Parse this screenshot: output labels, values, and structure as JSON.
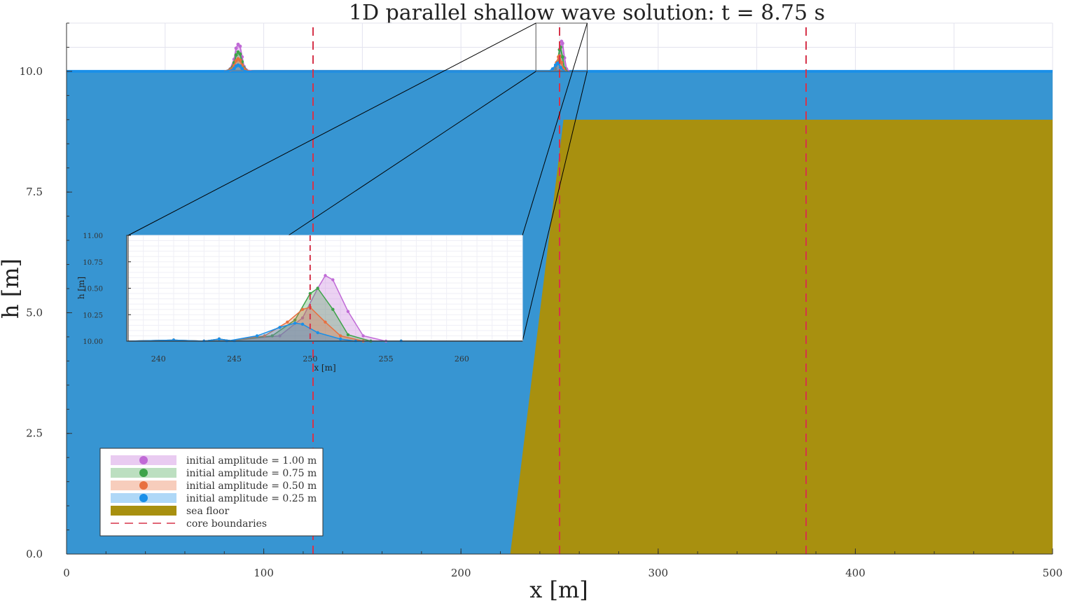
{
  "chart_data": {
    "type": "area",
    "title": "1D parallel shallow wave solution: t = 8.75 s",
    "xlabel": "x [m]",
    "ylabel": "h [m]",
    "xlim": [
      0,
      500
    ],
    "ylim": [
      0,
      11
    ],
    "x_ticks": [
      0,
      100,
      200,
      300,
      400,
      500
    ],
    "x_tick_labels": [
      "0",
      "100",
      "200",
      "300",
      "400",
      "500"
    ],
    "y_ticks": [
      0,
      2.5,
      5,
      7.5,
      10
    ],
    "y_tick_labels": [
      "0.0",
      "2.5",
      "5.0",
      "7.5",
      "10.0"
    ],
    "grid": true,
    "legend_position": "bottom-left",
    "core_boundaries_x": [
      125,
      250,
      375
    ],
    "sea_floor": {
      "name": "sea floor",
      "color": "#a8900f",
      "x": [
        0,
        225,
        252,
        500
      ],
      "y": [
        0,
        0,
        9.0,
        9.0
      ]
    },
    "series": [
      {
        "name": "initial amplitude = 1.00 m",
        "color": "#c06ad6",
        "x": [
          80,
          83,
          85,
          86,
          87,
          88,
          89,
          90,
          92,
          95,
          244.5,
          248,
          249.5,
          250.5,
          251,
          251.5,
          252.5,
          253.5,
          255
        ],
        "y": [
          10.0,
          10.05,
          10.25,
          10.48,
          10.56,
          10.52,
          10.3,
          10.1,
          10.02,
          10.0,
          10.0,
          10.05,
          10.22,
          10.5,
          10.62,
          10.58,
          10.28,
          10.05,
          10.0
        ]
      },
      {
        "name": "initial amplitude = 0.75 m",
        "color": "#3ea34a",
        "x": [
          80,
          83,
          85,
          86,
          87,
          88,
          89,
          90,
          92,
          95,
          244.5,
          247.5,
          249,
          250,
          250.5,
          251.5,
          252.5,
          254
        ],
        "y": [
          10.0,
          10.04,
          10.18,
          10.34,
          10.4,
          10.36,
          10.2,
          10.07,
          10.01,
          10.0,
          10.0,
          10.05,
          10.2,
          10.45,
          10.5,
          10.3,
          10.06,
          10.0
        ]
      },
      {
        "name": "initial amplitude = 0.50 m",
        "color": "#e8703f",
        "x": [
          80,
          83,
          85,
          86,
          87,
          88,
          89,
          90,
          92,
          95,
          244.5,
          247,
          248.5,
          249.5,
          250,
          251,
          252,
          253.5
        ],
        "y": [
          10.0,
          10.03,
          10.12,
          10.22,
          10.26,
          10.23,
          10.13,
          10.05,
          10.01,
          10.0,
          10.0,
          10.05,
          10.18,
          10.3,
          10.32,
          10.18,
          10.05,
          10.0
        ]
      },
      {
        "name": "initial amplitude = 0.25 m",
        "color": "#1a8fe8",
        "x": [
          80,
          83,
          85,
          86,
          87,
          88,
          89,
          90,
          92,
          95,
          244.5,
          246.5,
          248,
          249,
          249.5,
          250.5,
          252,
          253
        ],
        "y": [
          10.0,
          10.02,
          10.06,
          10.11,
          10.13,
          10.11,
          10.06,
          10.02,
          10.0,
          10.0,
          10.0,
          10.05,
          10.13,
          10.17,
          10.16,
          10.08,
          10.02,
          10.0
        ]
      }
    ],
    "inset": {
      "xlabel": "x [m]",
      "ylabel": "h [m]",
      "xlim": [
        238,
        264
      ],
      "ylim": [
        10.0,
        11.0
      ],
      "x_ticks": [
        240,
        245,
        250,
        255,
        260
      ],
      "x_tick_labels": [
        "240",
        "245",
        "250",
        "255",
        "260"
      ],
      "y_ticks": [
        10.0,
        10.25,
        10.5,
        10.75,
        11.0
      ],
      "y_tick_labels": [
        "10.00",
        "10.25",
        "10.50",
        "10.75",
        "11.00"
      ],
      "core_boundary_x": 250
    },
    "legend": [
      {
        "label": "initial amplitude = 1.00 m",
        "kind": "series",
        "color": "#c06ad6"
      },
      {
        "label": "initial amplitude = 0.75 m",
        "kind": "series",
        "color": "#3ea34a"
      },
      {
        "label": "initial amplitude = 0.50 m",
        "kind": "series",
        "color": "#e8703f"
      },
      {
        "label": "initial amplitude = 0.25 m",
        "kind": "series",
        "color": "#1a8fe8"
      },
      {
        "label": "sea floor",
        "kind": "fill",
        "color": "#a8900f"
      },
      {
        "label": "core boundaries",
        "kind": "dashed",
        "color": "#d6334a"
      }
    ],
    "water_color": "#3795d2",
    "core_boundary_color": "#d6334a"
  }
}
